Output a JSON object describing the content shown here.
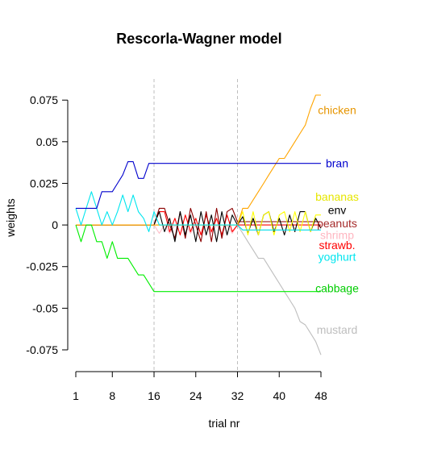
{
  "chart_data": {
    "type": "line",
    "title": "Rescorla-Wagner model",
    "xlabel": "trial nr",
    "ylabel": "weights",
    "xlim": [
      1,
      48
    ],
    "ylim": [
      -0.075,
      0.078
    ],
    "x_ticks": [
      1,
      8,
      16,
      24,
      32,
      40,
      48
    ],
    "y_ticks": [
      -0.075,
      -0.05,
      -0.025,
      0,
      0.025,
      0.05,
      0.075
    ],
    "y_tick_labels": [
      "-0.075",
      "-0.05",
      "-0.025",
      "0",
      "0.025",
      "0.05",
      "0.075"
    ],
    "vlines": [
      16,
      32
    ],
    "series": [
      {
        "name": "mustard",
        "color": "#bebebe",
        "points": [
          [
            1,
            0
          ],
          [
            32,
            0
          ],
          [
            33,
            -0.005
          ],
          [
            34,
            -0.01
          ],
          [
            35,
            -0.015
          ],
          [
            36,
            -0.02
          ],
          [
            37,
            -0.02
          ],
          [
            38,
            -0.025
          ],
          [
            39,
            -0.03
          ],
          [
            40,
            -0.035
          ],
          [
            41,
            -0.04
          ],
          [
            42,
            -0.045
          ],
          [
            43,
            -0.05
          ],
          [
            44,
            -0.058
          ],
          [
            45,
            -0.06
          ],
          [
            46,
            -0.065
          ],
          [
            47,
            -0.07
          ],
          [
            48,
            -0.078
          ]
        ]
      },
      {
        "name": "shrimp",
        "color": "#ffc0cb",
        "points": [
          [
            1,
            0
          ],
          [
            16,
            0
          ],
          [
            17,
            -0.005
          ],
          [
            18,
            0
          ],
          [
            19,
            -0.005
          ],
          [
            20,
            0
          ],
          [
            21,
            -0.005
          ],
          [
            22,
            0
          ],
          [
            23,
            -0.005
          ],
          [
            24,
            0
          ],
          [
            25,
            -0.005
          ],
          [
            26,
            0
          ],
          [
            27,
            -0.005
          ],
          [
            28,
            0
          ],
          [
            29,
            -0.005
          ],
          [
            30,
            0
          ],
          [
            31,
            -0.005
          ],
          [
            32,
            0
          ],
          [
            33,
            -0.003
          ],
          [
            48,
            -0.003
          ]
        ]
      },
      {
        "name": "strawb.",
        "color": "#ff0000",
        "points": [
          [
            1,
            0
          ],
          [
            16,
            0
          ],
          [
            17,
            0.008
          ],
          [
            18,
            0.008
          ],
          [
            19,
            -0.004
          ],
          [
            20,
            0.004
          ],
          [
            21,
            -0.006
          ],
          [
            22,
            0.006
          ],
          [
            23,
            -0.004
          ],
          [
            24,
            0.004
          ],
          [
            25,
            -0.006
          ],
          [
            26,
            0.006
          ],
          [
            27,
            -0.004
          ],
          [
            28,
            0.004
          ],
          [
            29,
            -0.006
          ],
          [
            30,
            0.006
          ],
          [
            31,
            -0.004
          ],
          [
            32,
            0
          ],
          [
            48,
            0
          ]
        ]
      },
      {
        "name": "peanuts",
        "color": "#8b0000",
        "points": [
          [
            1,
            0
          ],
          [
            16,
            0
          ],
          [
            17,
            0.01
          ],
          [
            18,
            0.01
          ],
          [
            19,
            0
          ],
          [
            20,
            -0.008
          ],
          [
            21,
            0.008
          ],
          [
            22,
            -0.008
          ],
          [
            23,
            0.01
          ],
          [
            24,
            0
          ],
          [
            25,
            -0.01
          ],
          [
            26,
            0.008
          ],
          [
            27,
            -0.01
          ],
          [
            28,
            0.01
          ],
          [
            29,
            -0.008
          ],
          [
            30,
            0.008
          ],
          [
            31,
            0.01
          ],
          [
            32,
            0.002
          ],
          [
            48,
            0.002
          ]
        ]
      },
      {
        "name": "env",
        "color": "#000000",
        "points": [
          [
            1,
            0
          ],
          [
            16,
            0
          ],
          [
            17,
            0.008
          ],
          [
            18,
            -0.004
          ],
          [
            19,
            0.004
          ],
          [
            20,
            -0.01
          ],
          [
            21,
            0.008
          ],
          [
            22,
            -0.006
          ],
          [
            23,
            0.006
          ],
          [
            24,
            -0.01
          ],
          [
            25,
            0.008
          ],
          [
            26,
            -0.006
          ],
          [
            27,
            0.006
          ],
          [
            28,
            -0.01
          ],
          [
            29,
            0.008
          ],
          [
            30,
            -0.006
          ],
          [
            31,
            0.006
          ],
          [
            32,
            0
          ],
          [
            33,
            0.005
          ],
          [
            34,
            -0.005
          ],
          [
            35,
            0.004
          ],
          [
            36,
            -0.006
          ],
          [
            37,
            0.006
          ],
          [
            38,
            0.008
          ],
          [
            39,
            -0.004
          ],
          [
            40,
            0.004
          ],
          [
            41,
            -0.006
          ],
          [
            42,
            0.006
          ],
          [
            43,
            -0.004
          ],
          [
            44,
            0.008
          ],
          [
            45,
            0.008
          ],
          [
            46,
            -0.004
          ],
          [
            47,
            0.004
          ],
          [
            48,
            -0.002
          ]
        ]
      },
      {
        "name": "bananas",
        "color": "#ffff00",
        "points": [
          [
            1,
            0
          ],
          [
            32,
            0
          ],
          [
            33,
            0.008
          ],
          [
            34,
            -0.006
          ],
          [
            35,
            0.008
          ],
          [
            36,
            -0.006
          ],
          [
            37,
            0.006
          ],
          [
            38,
            0.008
          ],
          [
            39,
            -0.006
          ],
          [
            40,
            0.006
          ],
          [
            41,
            0.008
          ],
          [
            42,
            -0.004
          ],
          [
            43,
            0.008
          ],
          [
            44,
            -0.004
          ],
          [
            45,
            0.008
          ],
          [
            46,
            -0.004
          ],
          [
            47,
            0.006
          ],
          [
            48,
            0.006
          ]
        ]
      },
      {
        "name": "chicken",
        "color": "#ffa500",
        "points": [
          [
            1,
            0
          ],
          [
            32,
            0
          ],
          [
            33,
            0.01
          ],
          [
            34,
            0.01
          ],
          [
            35,
            0.015
          ],
          [
            36,
            0.02
          ],
          [
            37,
            0.025
          ],
          [
            38,
            0.03
          ],
          [
            39,
            0.035
          ],
          [
            40,
            0.04
          ],
          [
            41,
            0.04
          ],
          [
            42,
            0.045
          ],
          [
            43,
            0.05
          ],
          [
            44,
            0.055
          ],
          [
            45,
            0.06
          ],
          [
            46,
            0.07
          ],
          [
            47,
            0.078
          ],
          [
            48,
            0.078
          ]
        ]
      },
      {
        "name": "yoghurt",
        "color": "#00e5ee",
        "points": [
          [
            1,
            0.01
          ],
          [
            2,
            0
          ],
          [
            3,
            0.01
          ],
          [
            4,
            0.02
          ],
          [
            5,
            0.01
          ],
          [
            6,
            0
          ],
          [
            7,
            0.008
          ],
          [
            8,
            0
          ],
          [
            9,
            0.008
          ],
          [
            10,
            0.018
          ],
          [
            11,
            0.008
          ],
          [
            12,
            0.018
          ],
          [
            13,
            0.008
          ],
          [
            14,
            0.004
          ],
          [
            15,
            -0.004
          ],
          [
            16,
            0.008
          ],
          [
            17,
            0
          ],
          [
            32,
            0
          ],
          [
            33,
            -0.003
          ],
          [
            48,
            -0.003
          ]
        ]
      },
      {
        "name": "bran",
        "color": "#0000cd",
        "points": [
          [
            1,
            0.01
          ],
          [
            2,
            0.01
          ],
          [
            3,
            0.01
          ],
          [
            4,
            0.01
          ],
          [
            5,
            0.01
          ],
          [
            6,
            0.02
          ],
          [
            7,
            0.02
          ],
          [
            8,
            0.02
          ],
          [
            9,
            0.025
          ],
          [
            10,
            0.03
          ],
          [
            11,
            0.038
          ],
          [
            12,
            0.038
          ],
          [
            13,
            0.028
          ],
          [
            14,
            0.028
          ],
          [
            15,
            0.037
          ],
          [
            16,
            0.037
          ],
          [
            48,
            0.037
          ]
        ]
      },
      {
        "name": "cabbage",
        "color": "#00ee00",
        "points": [
          [
            1,
            0
          ],
          [
            2,
            -0.01
          ],
          [
            3,
            0
          ],
          [
            4,
            0
          ],
          [
            5,
            -0.01
          ],
          [
            6,
            -0.01
          ],
          [
            7,
            -0.02
          ],
          [
            8,
            -0.01
          ],
          [
            9,
            -0.02
          ],
          [
            10,
            -0.02
          ],
          [
            11,
            -0.02
          ],
          [
            12,
            -0.025
          ],
          [
            13,
            -0.03
          ],
          [
            14,
            -0.03
          ],
          [
            15,
            -0.035
          ],
          [
            16,
            -0.04
          ],
          [
            48,
            -0.04
          ]
        ]
      }
    ],
    "labels": [
      {
        "text": "chicken",
        "color": "#e69500",
        "x": 48,
        "y": 0.069
      },
      {
        "text": "bran",
        "color": "#0000cd",
        "x": 48,
        "y": 0.037
      },
      {
        "text": "bananas",
        "color": "#e6e600",
        "x": 48,
        "y": 0.017
      },
      {
        "text": "env",
        "color": "#000000",
        "x": 48,
        "y": 0.009
      },
      {
        "text": "peanuts",
        "color": "#a52a2a",
        "x": 48,
        "y": 0.001
      },
      {
        "text": "shrimp",
        "color": "#ffb6c1",
        "x": 48,
        "y": -0.006
      },
      {
        "text": "strawb.",
        "color": "#ff0000",
        "x": 48,
        "y": -0.012
      },
      {
        "text": "yoghurt",
        "color": "#00e5ee",
        "x": 48,
        "y": -0.019
      },
      {
        "text": "cabbage",
        "color": "#00cd00",
        "x": 48,
        "y": -0.038
      },
      {
        "text": "mustard",
        "color": "#bebebe",
        "x": 48,
        "y": -0.063
      }
    ]
  }
}
